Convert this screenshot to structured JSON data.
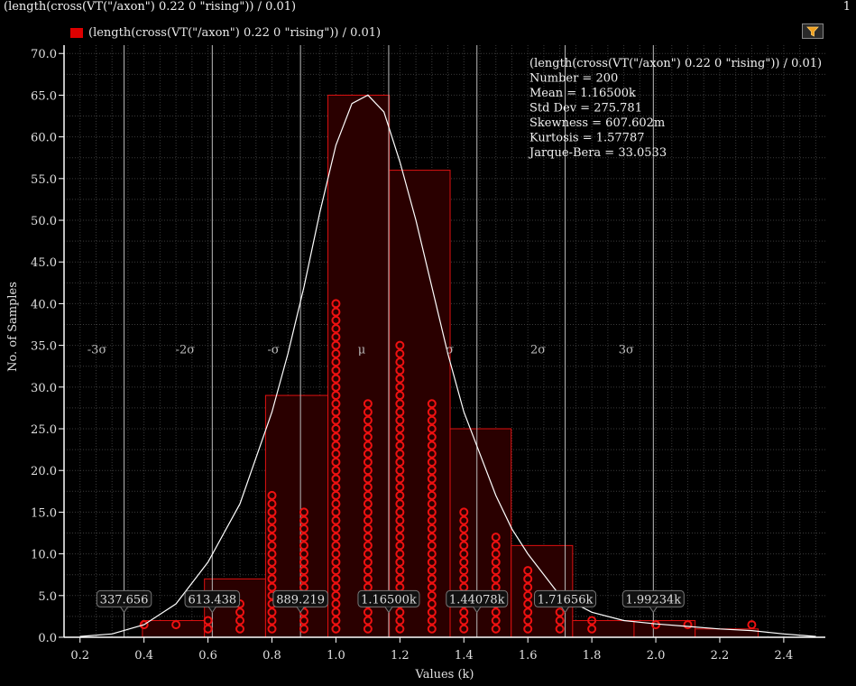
{
  "header": {
    "title": "(length(cross(VT(\"/axon\") 0.22 0 \"rising\")) / 0.01)",
    "page_number": "1"
  },
  "legend": {
    "label": "(length(cross(VT(\"/axon\") 0.22 0 \"rising\")) / 0.01)",
    "color": "#dd0000"
  },
  "toolbar": {
    "filter_icon": "funnel-icon"
  },
  "colors": {
    "background": "#000000",
    "bar_fill": "#2a0000",
    "bar_stroke": "#dd1111",
    "point": "#ee1111",
    "curve": "#ffffff",
    "sigma_line": "#bbbbbb",
    "grid": "#3a3a3a"
  },
  "stats": {
    "lines": [
      "(length(cross(VT(\"/axon\") 0.22 0 \"rising\")) / 0.01)",
      "Number = 200",
      "Mean = 1.16500k",
      "Std Dev = 275.781",
      "Skewness = 607.602m",
      "Kurtosis = 1.57787",
      "Jarque-Bera = 33.0533"
    ]
  },
  "chart_data": {
    "type": "bar",
    "xlabel": "Values (k)",
    "ylabel": "No. of Samples",
    "xlim": [
      0.15,
      2.53
    ],
    "ylim": [
      0,
      71
    ],
    "xticks": [
      "0.2",
      "0.4",
      "0.6",
      "0.8",
      "1.0",
      "1.2",
      "1.4",
      "1.6",
      "1.8",
      "2.0",
      "2.2",
      "2.4"
    ],
    "xtick_values": [
      0.2,
      0.4,
      0.6,
      0.8,
      1.0,
      1.2,
      1.4,
      1.6,
      1.8,
      2.0,
      2.2,
      2.4
    ],
    "yticks": [
      "0.0",
      "5.0",
      "10.0",
      "15.0",
      "20.0",
      "25.0",
      "30.0",
      "35.0",
      "40.0",
      "45.0",
      "50.0",
      "55.0",
      "60.0",
      "65.0",
      "70.0"
    ],
    "ytick_values": [
      0,
      5,
      10,
      15,
      20,
      25,
      30,
      35,
      40,
      45,
      50,
      55,
      60,
      65,
      70
    ],
    "grid": true,
    "bins": [
      {
        "x0": 0.395,
        "x1": 0.589,
        "count": 2
      },
      {
        "x0": 0.589,
        "x1": 0.78,
        "count": 7
      },
      {
        "x0": 0.78,
        "x1": 0.975,
        "count": 29
      },
      {
        "x0": 0.975,
        "x1": 1.167,
        "count": 65
      },
      {
        "x0": 1.167,
        "x1": 1.357,
        "count": 56
      },
      {
        "x0": 1.357,
        "x1": 1.548,
        "count": 25
      },
      {
        "x0": 1.548,
        "x1": 1.74,
        "count": 11
      },
      {
        "x0": 1.74,
        "x1": 1.932,
        "count": 2
      },
      {
        "x0": 1.932,
        "x1": 2.123,
        "count": 2
      },
      {
        "x0": 2.123,
        "x1": 2.32,
        "count": 1
      }
    ],
    "point_columns": [
      {
        "x": 0.4,
        "n": 1
      },
      {
        "x": 0.5,
        "n": 1
      },
      {
        "x": 0.6,
        "n": 2
      },
      {
        "x": 0.7,
        "n": 4
      },
      {
        "x": 0.8,
        "n": 17
      },
      {
        "x": 0.9,
        "n": 15
      },
      {
        "x": 1.0,
        "n": 40
      },
      {
        "x": 1.1,
        "n": 28
      },
      {
        "x": 1.2,
        "n": 35
      },
      {
        "x": 1.3,
        "n": 28
      },
      {
        "x": 1.4,
        "n": 15
      },
      {
        "x": 1.5,
        "n": 12
      },
      {
        "x": 1.6,
        "n": 8
      },
      {
        "x": 1.7,
        "n": 3
      },
      {
        "x": 1.8,
        "n": 2
      },
      {
        "x": 2.0,
        "n": 1
      },
      {
        "x": 2.1,
        "n": 1
      },
      {
        "x": 2.3,
        "n": 1
      }
    ],
    "curve": {
      "x": [
        0.2,
        0.3,
        0.4,
        0.5,
        0.6,
        0.7,
        0.8,
        0.85,
        0.9,
        0.95,
        1.0,
        1.05,
        1.1,
        1.15,
        1.2,
        1.25,
        1.3,
        1.35,
        1.4,
        1.45,
        1.5,
        1.55,
        1.6,
        1.7,
        1.8,
        1.9,
        2.0,
        2.1,
        2.2,
        2.3,
        2.4,
        2.5
      ],
      "y": [
        0.1,
        0.4,
        1.5,
        4,
        9,
        16,
        27,
        34,
        42,
        51,
        59,
        64,
        65,
        63,
        57,
        50,
        42,
        34,
        27,
        22,
        17,
        13,
        10,
        5,
        3,
        2,
        1.6,
        1.3,
        1.0,
        0.8,
        0.4,
        0.1
      ]
    },
    "sigma_lines": [
      {
        "label": "-3σ",
        "x": 0.3377,
        "value_label": "337.656"
      },
      {
        "label": "-2σ",
        "x": 0.6134,
        "value_label": "613.438"
      },
      {
        "label": "-σ",
        "x": 0.8892,
        "value_label": "889.219"
      },
      {
        "label": "μ",
        "x": 1.165,
        "value_label": "1.16500k"
      },
      {
        "label": "σ",
        "x": 1.4408,
        "value_label": "1.44078k"
      },
      {
        "label": "2σ",
        "x": 1.7166,
        "value_label": "1.71656k"
      },
      {
        "label": "3σ",
        "x": 1.9923,
        "value_label": "1.99234k"
      }
    ],
    "sigma_label_y": 34.6,
    "value_label_y": 4.5
  }
}
